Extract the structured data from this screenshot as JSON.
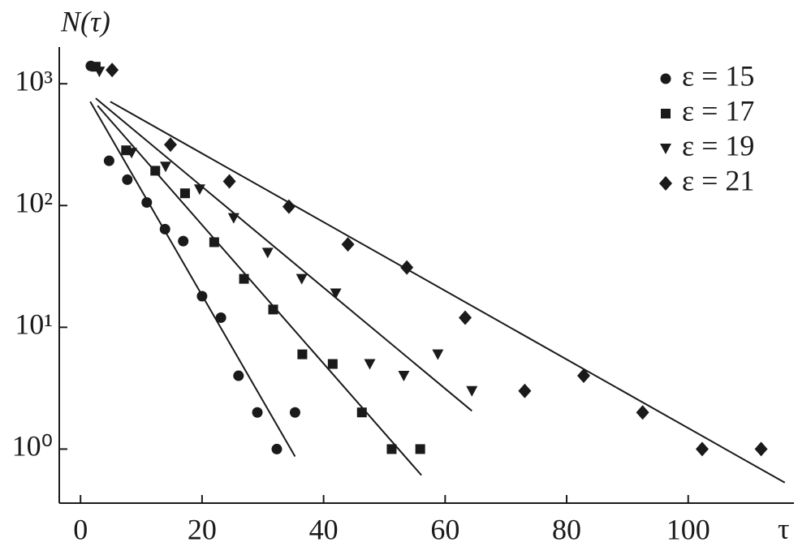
{
  "chart_data": {
    "type": "scatter",
    "y_label": "N(τ)",
    "x_label": "τ",
    "xlim": [
      -3.5,
      117
    ],
    "ylim": [
      0.36,
      1940
    ],
    "y_scale": "log",
    "xticks": [
      0,
      20,
      40,
      60,
      80,
      100
    ],
    "yticks": [
      {
        "value": 1,
        "label": "10⁰"
      },
      {
        "value": 10,
        "label": "10¹"
      },
      {
        "value": 100,
        "label": "10²"
      },
      {
        "value": 1000,
        "label": "10³"
      }
    ],
    "legend_position": "upper right",
    "series": [
      {
        "name": "ε = 15",
        "marker": "circle",
        "color": "#1a1a1a",
        "x": [
          1.7,
          4.7,
          7.7,
          10.9,
          13.9,
          16.9,
          20.0,
          23.1,
          26.0,
          29.1,
          32.3,
          35.3
        ],
        "values": [
          1400,
          233,
          163,
          106,
          64,
          51,
          18,
          12,
          4,
          2,
          1,
          2
        ],
        "fit": {
          "x": [
            1.6,
            35.3
          ],
          "values": [
            713,
            0.87
          ]
        }
      },
      {
        "name": "ε = 17",
        "marker": "square",
        "color": "#1a1a1a",
        "x": [
          2.5,
          7.5,
          12.3,
          17.2,
          22.0,
          26.9,
          31.7,
          36.5,
          41.5,
          46.3,
          51.2,
          55.9
        ],
        "values": [
          1380,
          284,
          193,
          126,
          50,
          25,
          14,
          6,
          5,
          2,
          1,
          1
        ],
        "fit": {
          "x": [
            2.8,
            56.1
          ],
          "values": [
            661,
            0.61
          ]
        }
      },
      {
        "name": "ε = 19",
        "marker": "triangle",
        "color": "#1a1a1a",
        "x": [
          3.1,
          8.4,
          14.0,
          19.6,
          25.2,
          30.8,
          36.4,
          42.0,
          47.6,
          53.2,
          58.8,
          64.4
        ],
        "values": [
          1259,
          271,
          209,
          136,
          79,
          41,
          25,
          19,
          5,
          4,
          6,
          3
        ],
        "fit": {
          "x": [
            2.5,
            64.4
          ],
          "values": [
            759,
            2.06
          ]
        }
      },
      {
        "name": "ε = 21",
        "marker": "diamond",
        "color": "#1a1a1a",
        "x": [
          5.2,
          14.8,
          24.5,
          34.3,
          44.0,
          53.7,
          63.3,
          73.1,
          82.8,
          92.5,
          102.3,
          112.0
        ],
        "values": [
          1298,
          316,
          158,
          98,
          48,
          31,
          12,
          3,
          4,
          2,
          1,
          1
        ],
        "fit": {
          "x": [
            4.9,
            115.9
          ],
          "values": [
            713,
            0.53
          ]
        }
      }
    ]
  }
}
